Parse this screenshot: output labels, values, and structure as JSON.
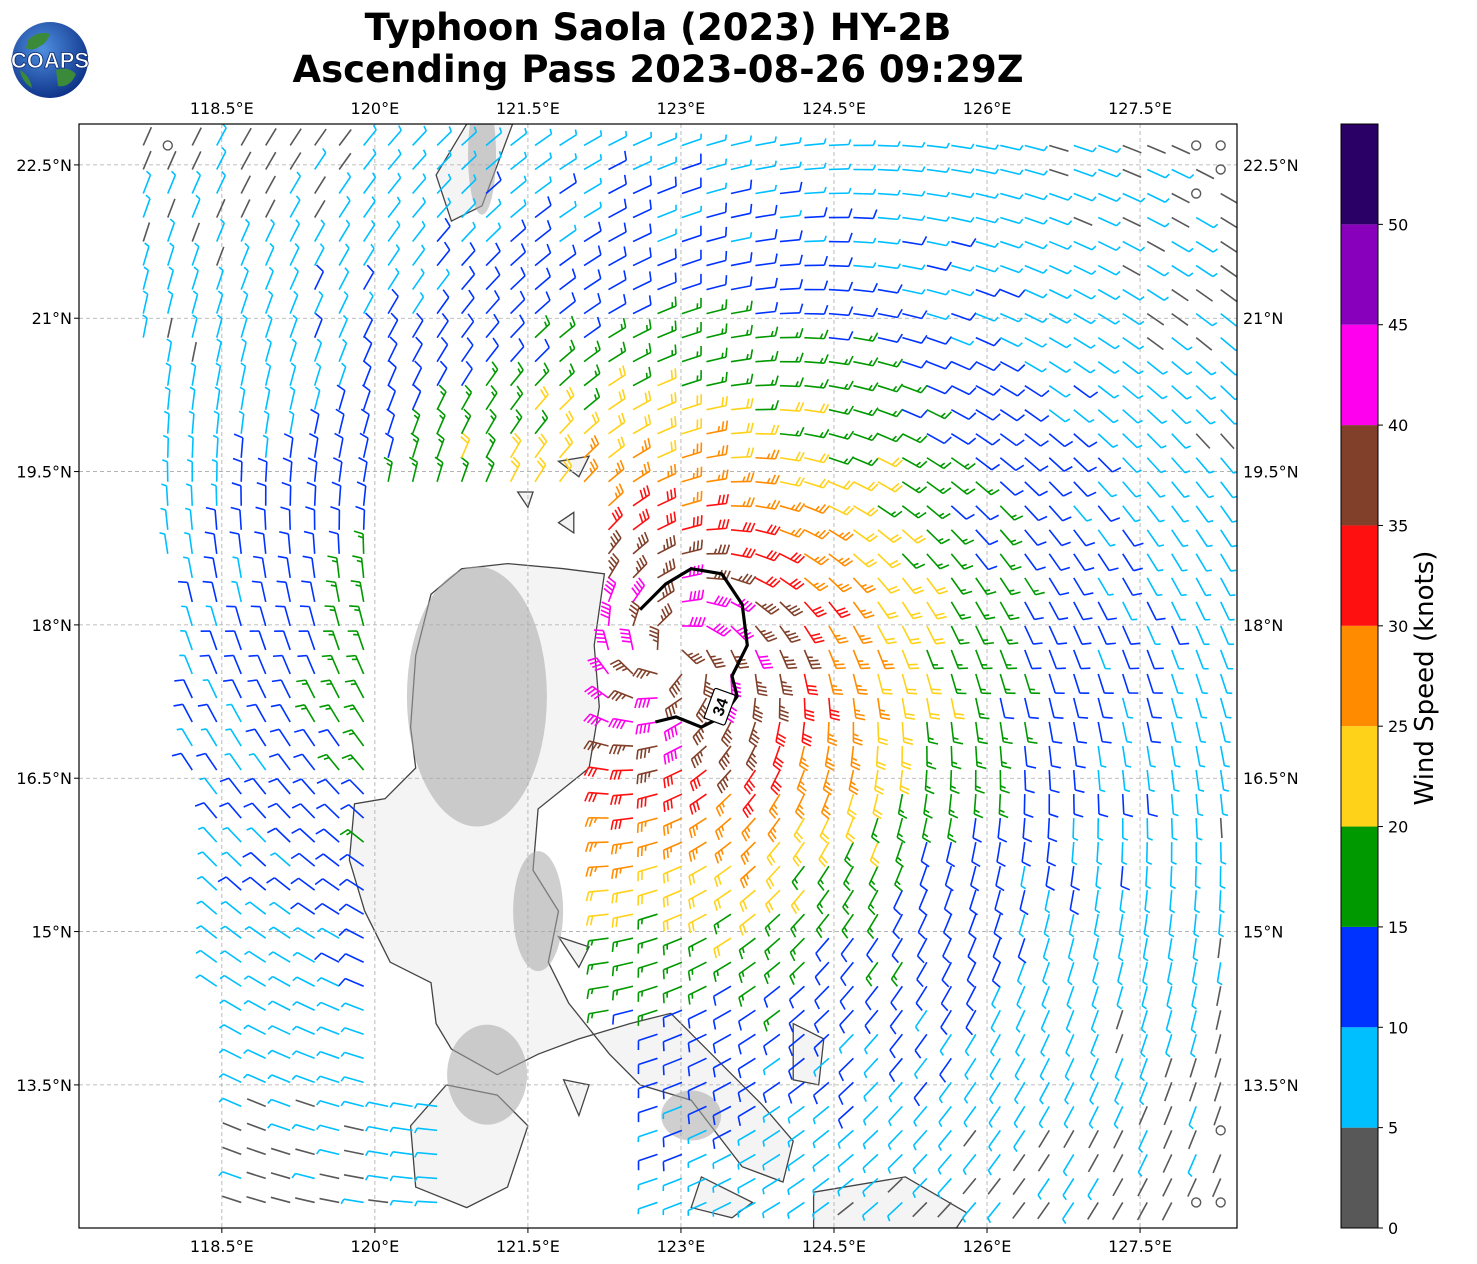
{
  "title": {
    "line1": "Typhoon Saola (2023) HY-2B",
    "line2": "Ascending Pass 2023-08-26 09:29Z"
  },
  "logo": {
    "text": "COAPS",
    "icon": "globe-logo-icon"
  },
  "map": {
    "extent": {
      "lon": [
        117.1,
        128.45
      ],
      "lat": [
        12.1,
        22.9
      ]
    },
    "lon_ticks": [
      "118.5°E",
      "120°E",
      "121.5°E",
      "123°E",
      "124.5°E",
      "126°E",
      "127.5°E"
    ],
    "lon_values": [
      118.5,
      120,
      121.5,
      123,
      124.5,
      126,
      127.5
    ],
    "lat_ticks": [
      "22.5°N",
      "21°N",
      "19.5°N",
      "18°N",
      "16.5°N",
      "15°N",
      "13.5°N"
    ],
    "lat_values": [
      22.5,
      21,
      19.5,
      18,
      16.5,
      15,
      13.5
    ],
    "gridlines": true,
    "land_color": "#f4f4f4",
    "coast_color": "#444444",
    "storm_center": {
      "lon": 122.9,
      "lat": 17.7
    },
    "contour_label": "34"
  },
  "colorbar": {
    "label": "Wind Speed (knots)",
    "tick_labels": [
      "0",
      "5",
      "10",
      "15",
      "20",
      "25",
      "30",
      "35",
      "40",
      "45",
      "50"
    ],
    "bins": [
      {
        "from": 0,
        "to": 5,
        "color": "#585858"
      },
      {
        "from": 5,
        "to": 10,
        "color": "#00bfff"
      },
      {
        "from": 10,
        "to": 15,
        "color": "#0033ff"
      },
      {
        "from": 15,
        "to": 20,
        "color": "#009900"
      },
      {
        "from": 20,
        "to": 25,
        "color": "#ffd21a"
      },
      {
        "from": 25,
        "to": 30,
        "color": "#ff8c00"
      },
      {
        "from": 30,
        "to": 35,
        "color": "#ff1010"
      },
      {
        "from": 35,
        "to": 40,
        "color": "#80402a"
      },
      {
        "from": 40,
        "to": 45,
        "color": "#ff00ee"
      },
      {
        "from": 45,
        "to": 50,
        "color": "#8800bb"
      },
      {
        "from": 50,
        "to": 55,
        "color": "#2a0066"
      }
    ]
  }
}
